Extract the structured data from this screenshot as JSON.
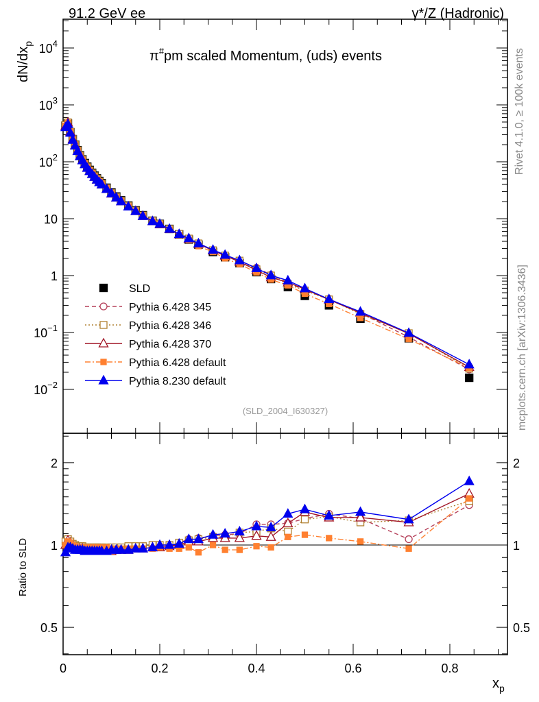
{
  "header": {
    "left": "91.2 GeV ee",
    "right": "γ*/Z (Hadronic)"
  },
  "side": {
    "rivet": "Rivet 4.1.0, ≥ 100k events",
    "mcplots": "mcplots.cern.ch [arXiv:1306.3436]"
  },
  "chart_data": [
    {
      "type": "scatter",
      "title": "π#pm scaled Momentum, (uds) events",
      "title_main": "π",
      "title_sup": "#",
      "title_rest": "pm scaled Momentum, (uds) events",
      "ylabel": "dN/dx",
      "ylabel_sub": "p",
      "yscale": "log",
      "ylim": [
        0.0017,
        31600
      ],
      "xlim": [
        0,
        0.92
      ],
      "yticks": [
        {
          "v": 10000,
          "b": "10",
          "e": "4"
        },
        {
          "v": 1000,
          "b": "10",
          "e": "3"
        },
        {
          "v": 100,
          "b": "10",
          "e": "2"
        },
        {
          "v": 10,
          "b": "10",
          "e": ""
        },
        {
          "v": 1,
          "b": "1",
          "e": ""
        },
        {
          "v": 0.1,
          "b": "10",
          "e": "−1"
        },
        {
          "v": 0.01,
          "b": "10",
          "e": "−2"
        }
      ],
      "annotation": "(SLD_2004_I630327)",
      "legend_position": "lower-left",
      "x": [
        0.005,
        0.01,
        0.015,
        0.02,
        0.025,
        0.03,
        0.035,
        0.04,
        0.045,
        0.05,
        0.055,
        0.06,
        0.065,
        0.07,
        0.075,
        0.08,
        0.09,
        0.1,
        0.11,
        0.12,
        0.135,
        0.15,
        0.165,
        0.185,
        0.2,
        0.22,
        0.24,
        0.26,
        0.28,
        0.31,
        0.335,
        0.365,
        0.4,
        0.43,
        0.465,
        0.5,
        0.55,
        0.615,
        0.715,
        0.84
      ],
      "sld": [
        430,
        470,
        330,
        250,
        200,
        160,
        130,
        110,
        95,
        82,
        72,
        64,
        57,
        51,
        46,
        42,
        35,
        29,
        24.5,
        21,
        17,
        14,
        11.5,
        9.2,
        8.1,
        6.6,
        5.3,
        4.3,
        3.5,
        2.6,
        2.1,
        1.65,
        1.15,
        0.87,
        0.63,
        0.44,
        0.3,
        0.175,
        0.079,
        0.016
      ],
      "series": [
        {
          "name": "SLD",
          "color": "#000000",
          "marker": "square-filled",
          "line": "none"
        },
        {
          "name": "Pythia 6.428 345",
          "color": "#b5405a",
          "marker": "circle-open",
          "line": "dashed",
          "ratio": [
            1.02,
            1.05,
            1.03,
            1.01,
            0.99,
            0.98,
            0.98,
            0.98,
            0.97,
            0.97,
            0.97,
            0.96,
            0.96,
            0.96,
            0.96,
            0.96,
            0.96,
            0.97,
            0.97,
            0.97,
            0.98,
            0.98,
            0.99,
            0.99,
            1.0,
            1.0,
            1.02,
            1.05,
            1.06,
            1.08,
            1.09,
            1.1,
            1.19,
            1.19,
            1.2,
            1.25,
            1.3,
            1.25,
            1.05,
            1.4
          ]
        },
        {
          "name": "Pythia 6.428 346",
          "color": "#b08030",
          "marker": "square-open",
          "line": "dotted",
          "ratio": [
            1.03,
            1.05,
            1.03,
            1.01,
            1.0,
            0.99,
            0.99,
            0.99,
            0.98,
            0.98,
            0.98,
            0.98,
            0.98,
            0.98,
            0.98,
            0.98,
            0.98,
            0.98,
            0.98,
            0.98,
            0.99,
            0.99,
            0.99,
            1.0,
            1.0,
            1.0,
            1.02,
            1.04,
            1.05,
            1.07,
            1.07,
            1.11,
            1.12,
            1.15,
            1.12,
            1.24,
            1.27,
            1.21,
            1.23,
            1.45
          ]
        },
        {
          "name": "Pythia 6.428 370",
          "color": "#a01525",
          "marker": "triangle-open",
          "line": "solid",
          "ratio": [
            1.0,
            1.04,
            1.02,
            1.0,
            0.98,
            0.97,
            0.97,
            0.97,
            0.96,
            0.96,
            0.96,
            0.95,
            0.95,
            0.95,
            0.95,
            0.95,
            0.95,
            0.95,
            0.96,
            0.96,
            0.96,
            0.97,
            0.97,
            0.98,
            0.98,
            0.99,
            1.0,
            1.03,
            1.03,
            1.06,
            1.06,
            1.06,
            1.08,
            1.07,
            1.2,
            1.32,
            1.26,
            1.26,
            1.21,
            1.54
          ]
        },
        {
          "name": "Pythia 6.428 default",
          "color": "#ff8030",
          "marker": "square-filled-small",
          "line": "dashdot",
          "ratio": [
            1.0,
            1.03,
            1.02,
            1.0,
            0.99,
            0.98,
            0.98,
            0.98,
            0.98,
            0.97,
            0.98,
            0.98,
            0.98,
            0.97,
            0.98,
            0.98,
            0.98,
            0.97,
            0.97,
            0.97,
            0.97,
            0.97,
            0.97,
            0.97,
            0.98,
            0.97,
            0.97,
            0.98,
            0.94,
            1.0,
            0.96,
            0.96,
            0.99,
            0.98,
            1.07,
            1.09,
            1.06,
            1.03,
            0.97,
            1.48
          ]
        },
        {
          "name": "Pythia 8.230 default",
          "color": "#0000ee",
          "marker": "triangle-filled",
          "line": "solid",
          "ratio": [
            0.94,
            0.98,
            0.98,
            0.97,
            0.96,
            0.96,
            0.96,
            0.96,
            0.95,
            0.95,
            0.95,
            0.95,
            0.95,
            0.95,
            0.95,
            0.95,
            0.95,
            0.96,
            0.96,
            0.96,
            0.96,
            0.97,
            0.97,
            0.98,
            1.0,
            1.0,
            1.01,
            1.05,
            1.05,
            1.09,
            1.1,
            1.12,
            1.17,
            1.16,
            1.3,
            1.35,
            1.28,
            1.32,
            1.24,
            1.71
          ]
        }
      ]
    },
    {
      "type": "line",
      "ylabel": "Ratio to SLD",
      "xlabel": "x",
      "xlabel_sub": "p",
      "yscale": "log",
      "ylim": [
        0.4,
        2.56
      ],
      "yticks": [
        "2",
        "1",
        "0.5"
      ],
      "ytick_values": [
        2,
        1,
        0.5
      ],
      "xticks": [
        "0",
        "0.2",
        "0.4",
        "0.6",
        "0.8"
      ],
      "xtick_values": [
        0,
        0.2,
        0.4,
        0.6,
        0.8
      ]
    }
  ]
}
